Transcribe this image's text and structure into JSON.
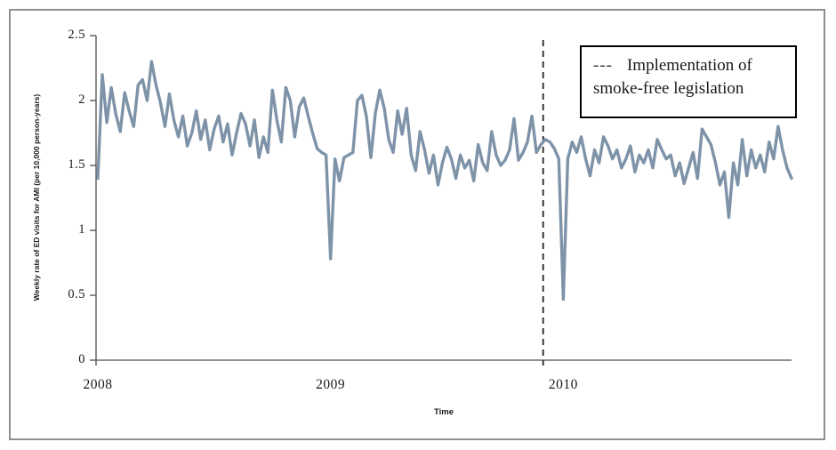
{
  "figure": {
    "y_axis": {
      "title": "Weekly rate of ED visits for AMI (per 10,000 person-years)",
      "ticks": [
        "2.5",
        "2",
        "1.5",
        "1",
        "0.5",
        "0"
      ],
      "tick_values": [
        2.5,
        2,
        1.5,
        1,
        0.5,
        0
      ]
    },
    "x_axis": {
      "title": "Time",
      "ticks": [
        "2008",
        "2009",
        "2010"
      ],
      "tick_week_indices": [
        0,
        52,
        104
      ]
    },
    "legend": {
      "key": "---",
      "line1": "Implementation of",
      "line2": "smoke-free legislation"
    },
    "colors": {
      "series_line": "#7E93A8",
      "reference_line": "#262626",
      "axis": "#4d4d4d",
      "frame_border": "#8f8f8f"
    }
  },
  "chart_data": {
    "type": "line",
    "title": "",
    "xlabel": "Time",
    "ylabel": "Weekly rate of ED visits for AMI (per 10,000 person-years)",
    "ylim": [
      0,
      2.5
    ],
    "x_unit": "week",
    "x_years": [
      2008,
      2009,
      2010
    ],
    "grid": false,
    "legend_position": "top-right",
    "annotations": [
      {
        "type": "vline",
        "style": "dashed",
        "x_week_index": 99.5,
        "label": "Implementation of smoke-free legislation"
      }
    ],
    "series": [
      {
        "name": "Weekly rate of ED visits for AMI (per 10,000 person-years)",
        "values": [
          1.4,
          2.2,
          1.83,
          2.1,
          1.9,
          1.76,
          2.06,
          1.92,
          1.8,
          2.12,
          2.16,
          2.0,
          2.3,
          2.12,
          1.98,
          1.8,
          2.05,
          1.85,
          1.72,
          1.88,
          1.65,
          1.75,
          1.92,
          1.7,
          1.85,
          1.62,
          1.78,
          1.88,
          1.68,
          1.82,
          1.58,
          1.75,
          1.9,
          1.82,
          1.65,
          1.85,
          1.56,
          1.72,
          1.6,
          2.08,
          1.85,
          1.68,
          2.1,
          2.0,
          1.72,
          1.95,
          2.02,
          1.88,
          1.75,
          1.63,
          1.6,
          1.58,
          0.78,
          1.55,
          1.38,
          1.56,
          1.58,
          1.6,
          2.0,
          2.04,
          1.88,
          1.56,
          1.9,
          2.08,
          1.94,
          1.7,
          1.6,
          1.92,
          1.74,
          1.94,
          1.58,
          1.46,
          1.76,
          1.62,
          1.44,
          1.58,
          1.35,
          1.52,
          1.64,
          1.55,
          1.4,
          1.58,
          1.48,
          1.54,
          1.38,
          1.66,
          1.52,
          1.46,
          1.76,
          1.58,
          1.5,
          1.54,
          1.62,
          1.86,
          1.54,
          1.6,
          1.68,
          1.88,
          1.6,
          1.66,
          1.7,
          1.68,
          1.63,
          1.55,
          0.47,
          1.55,
          1.68,
          1.6,
          1.72,
          1.55,
          1.42,
          1.62,
          1.52,
          1.72,
          1.65,
          1.55,
          1.62,
          1.48,
          1.55,
          1.65,
          1.45,
          1.58,
          1.52,
          1.62,
          1.48,
          1.7,
          1.62,
          1.55,
          1.58,
          1.42,
          1.52,
          1.36,
          1.48,
          1.6,
          1.4,
          1.78,
          1.72,
          1.66,
          1.52,
          1.35,
          1.45,
          1.1,
          1.52,
          1.35,
          1.7,
          1.42,
          1.62,
          1.48,
          1.58,
          1.45,
          1.68,
          1.55,
          1.8,
          1.62,
          1.48,
          1.4
        ]
      }
    ]
  }
}
